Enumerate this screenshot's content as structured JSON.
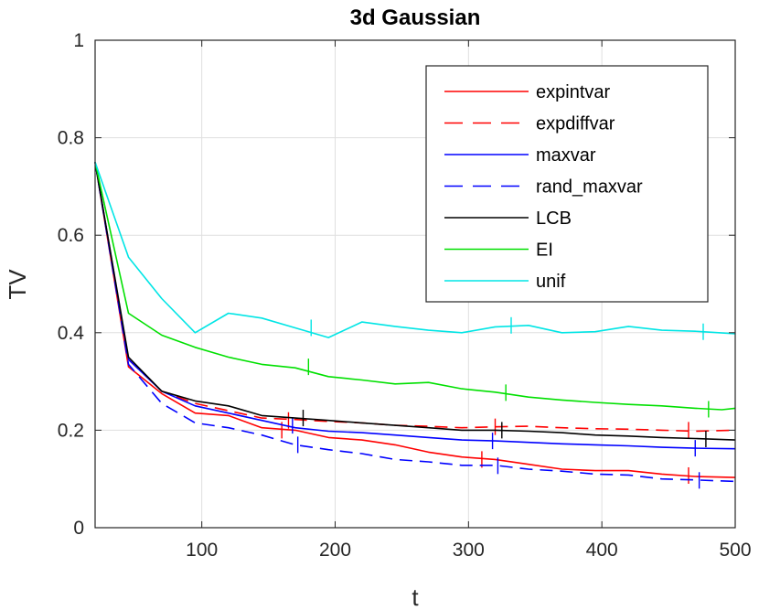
{
  "chart_data": {
    "type": "line",
    "title": "3d Gaussian",
    "xlabel": "t",
    "ylabel": "TV",
    "xlim": [
      20,
      500
    ],
    "ylim": [
      0,
      1
    ],
    "xticks": [
      100,
      200,
      300,
      400,
      500
    ],
    "yticks": [
      0,
      0.2,
      0.4,
      0.6,
      0.8,
      1
    ],
    "xtick_labels": [
      "100",
      "200",
      "300",
      "400",
      "500"
    ],
    "ytick_labels": [
      "0",
      "0.2",
      "0.4",
      "0.6",
      "0.8",
      "1"
    ],
    "grid": true,
    "legend_position": "top-right",
    "series": [
      {
        "name": "expintvar",
        "color": "#ff0000",
        "dash": "solid",
        "x": [
          20,
          45,
          70,
          95,
          120,
          145,
          170,
          195,
          220,
          245,
          270,
          295,
          320,
          345,
          370,
          395,
          420,
          445,
          470,
          500
        ],
        "y": [
          0.75,
          0.33,
          0.275,
          0.235,
          0.23,
          0.205,
          0.2,
          0.185,
          0.18,
          0.17,
          0.155,
          0.145,
          0.14,
          0.13,
          0.12,
          0.117,
          0.117,
          0.11,
          0.105,
          0.103
        ],
        "err_x": [
          160,
          310,
          465
        ],
        "err_y": [
          0.2,
          0.14,
          0.107
        ]
      },
      {
        "name": "expdiffvar",
        "color": "#ff0000",
        "dash": "dashed",
        "x": [
          20,
          45,
          70,
          95,
          120,
          145,
          170,
          195,
          220,
          245,
          270,
          295,
          320,
          345,
          370,
          395,
          420,
          445,
          470,
          500
        ],
        "y": [
          0.75,
          0.345,
          0.28,
          0.255,
          0.24,
          0.225,
          0.222,
          0.218,
          0.215,
          0.21,
          0.208,
          0.205,
          0.207,
          0.208,
          0.205,
          0.203,
          0.202,
          0.2,
          0.198,
          0.2
        ],
        "err_x": [
          165,
          320,
          465
        ],
        "err_y": [
          0.22,
          0.207,
          0.2
        ]
      },
      {
        "name": "maxvar",
        "color": "#0000ff",
        "dash": "solid",
        "x": [
          20,
          45,
          70,
          95,
          120,
          145,
          170,
          195,
          220,
          245,
          270,
          295,
          320,
          345,
          370,
          395,
          420,
          445,
          470,
          500
        ],
        "y": [
          0.75,
          0.345,
          0.28,
          0.25,
          0.235,
          0.22,
          0.205,
          0.198,
          0.195,
          0.19,
          0.185,
          0.18,
          0.178,
          0.175,
          0.172,
          0.17,
          0.168,
          0.165,
          0.163,
          0.162
        ],
        "err_x": [
          168,
          318,
          470
        ],
        "err_y": [
          0.21,
          0.178,
          0.163
        ]
      },
      {
        "name": "rand_maxvar",
        "color": "#0000ff",
        "dash": "dashed",
        "x": [
          20,
          45,
          70,
          95,
          120,
          145,
          170,
          195,
          220,
          245,
          270,
          295,
          320,
          345,
          370,
          395,
          420,
          445,
          470,
          500
        ],
        "y": [
          0.75,
          0.335,
          0.255,
          0.215,
          0.205,
          0.19,
          0.17,
          0.16,
          0.152,
          0.14,
          0.135,
          0.128,
          0.128,
          0.12,
          0.116,
          0.11,
          0.108,
          0.1,
          0.098,
          0.095
        ],
        "err_x": [
          172,
          322,
          473
        ],
        "err_y": [
          0.17,
          0.127,
          0.097
        ]
      },
      {
        "name": "LCB",
        "color": "#000000",
        "dash": "solid",
        "x": [
          20,
          45,
          70,
          95,
          120,
          145,
          170,
          195,
          220,
          245,
          270,
          295,
          320,
          345,
          370,
          395,
          420,
          445,
          470,
          500
        ],
        "y": [
          0.75,
          0.35,
          0.28,
          0.26,
          0.25,
          0.23,
          0.225,
          0.22,
          0.215,
          0.21,
          0.205,
          0.2,
          0.2,
          0.198,
          0.195,
          0.19,
          0.188,
          0.185,
          0.183,
          0.18
        ],
        "err_x": [
          176,
          325,
          478
        ],
        "err_y": [
          0.225,
          0.2,
          0.182
        ]
      },
      {
        "name": "EI",
        "color": "#00e000",
        "dash": "solid",
        "x": [
          20,
          45,
          70,
          95,
          120,
          145,
          170,
          195,
          220,
          245,
          270,
          295,
          320,
          345,
          370,
          395,
          420,
          445,
          470,
          490,
          500
        ],
        "y": [
          0.75,
          0.44,
          0.395,
          0.37,
          0.35,
          0.335,
          0.328,
          0.31,
          0.303,
          0.295,
          0.298,
          0.285,
          0.278,
          0.268,
          0.262,
          0.257,
          0.253,
          0.25,
          0.245,
          0.242,
          0.245
        ],
        "err_x": [
          180,
          328,
          480
        ],
        "err_y": [
          0.33,
          0.277,
          0.243
        ]
      },
      {
        "name": "unif",
        "color": "#00e5e5",
        "dash": "solid",
        "x": [
          20,
          45,
          70,
          95,
          120,
          145,
          170,
          195,
          220,
          245,
          270,
          295,
          320,
          345,
          370,
          395,
          420,
          445,
          470,
          500
        ],
        "y": [
          0.75,
          0.555,
          0.47,
          0.4,
          0.44,
          0.43,
          0.41,
          0.39,
          0.422,
          0.413,
          0.405,
          0.4,
          0.412,
          0.415,
          0.4,
          0.402,
          0.413,
          0.405,
          0.403,
          0.398
        ],
        "err_x": [
          182,
          332,
          476
        ],
        "err_y": [
          0.41,
          0.415,
          0.402
        ]
      }
    ]
  }
}
